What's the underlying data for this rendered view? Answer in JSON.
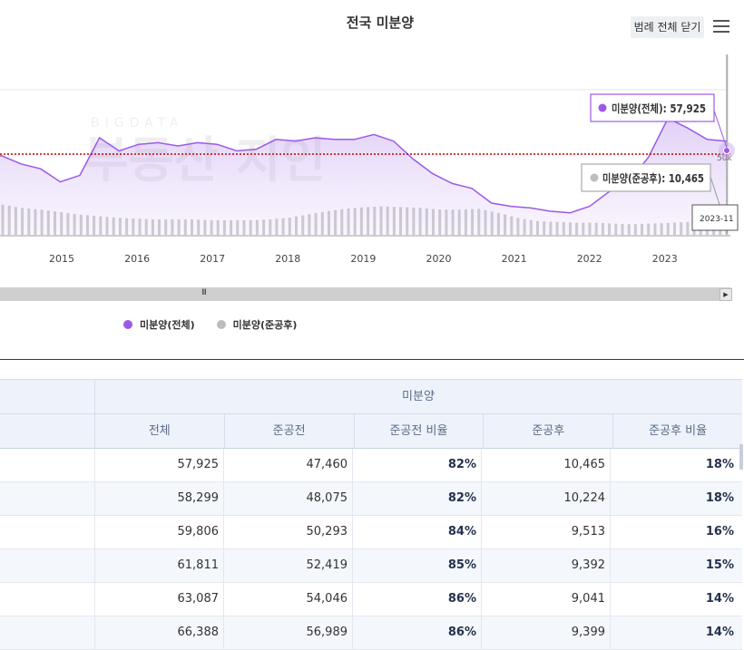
{
  "title": "전국 미분양",
  "legend_toggle_label": "범례 전체 닫기",
  "menu_icon": "hamburger-menu-icon",
  "colors": {
    "total": "#9b59e8",
    "completed": "#bdbdbd",
    "refline": "#c00000",
    "accent_table": "#283a5a"
  },
  "chart_data": {
    "type": "area",
    "x_tick_labels": [
      "2015",
      "2016",
      "2017",
      "2018",
      "2019",
      "2020",
      "2021",
      "2022",
      "2023"
    ],
    "reference_line_label": "50k",
    "reference_line_value": 50000,
    "series": [
      {
        "name": "미분양(전체)",
        "type": "area",
        "x": [
          "2014-06",
          "2014-09",
          "2014-12",
          "2015-03",
          "2015-06",
          "2015-09",
          "2015-12",
          "2016-03",
          "2016-06",
          "2016-09",
          "2016-12",
          "2017-03",
          "2017-06",
          "2017-09",
          "2017-12",
          "2018-03",
          "2018-06",
          "2018-09",
          "2018-12",
          "2019-03",
          "2019-06",
          "2019-09",
          "2019-12",
          "2020-03",
          "2020-06",
          "2020-09",
          "2020-12",
          "2021-03",
          "2021-06",
          "2021-09",
          "2021-12",
          "2022-03",
          "2022-06",
          "2022-09",
          "2022-12",
          "2023-03",
          "2023-06",
          "2023-09",
          "2023-11"
        ],
        "values": [
          48000,
          49000,
          44000,
          41000,
          33000,
          37000,
          60000,
          52000,
          56000,
          57000,
          55000,
          57000,
          56000,
          52000,
          53000,
          59000,
          58000,
          60000,
          59000,
          59000,
          62000,
          58000,
          47000,
          38000,
          32000,
          29000,
          20000,
          18000,
          17000,
          15000,
          14000,
          18000,
          27000,
          33000,
          48000,
          72000,
          66000,
          59000,
          57925
        ]
      },
      {
        "name": "미분양(준공후)",
        "type": "bar",
        "x_range": [
          "2014-06",
          "2023-11"
        ],
        "values": [
          19000,
          17000,
          16000,
          14500,
          13000,
          12000,
          11000,
          10500,
          10000,
          10000,
          10000,
          9500,
          9500,
          9500,
          10000,
          11000,
          13000,
          15000,
          16500,
          17500,
          18000,
          17500,
          17000,
          16000,
          16000,
          16500,
          14000,
          11000,
          9000,
          8500,
          8000,
          8000,
          7500,
          7000,
          7500,
          7800,
          8500,
          9500,
          10465
        ]
      }
    ],
    "tooltips": [
      {
        "label": "미분양(전체): 57,925"
      },
      {
        "label": "미분양(준공후): 10,465"
      }
    ],
    "crosshair_label": "2023-11"
  },
  "legend": [
    {
      "label": "미분양(전체)",
      "color": "#9b59e8"
    },
    {
      "label": "미분양(준공후)",
      "color": "#bdbdbd"
    }
  ],
  "table": {
    "group_header": "미분양",
    "columns": [
      "전체",
      "준공전",
      "준공전 비율",
      "준공후",
      "준공후 비율"
    ],
    "rows": [
      [
        "57,925",
        "47,460",
        "82%",
        "10,465",
        "18%"
      ],
      [
        "58,299",
        "48,075",
        "82%",
        "10,224",
        "18%"
      ],
      [
        "59,806",
        "50,293",
        "84%",
        "9,513",
        "16%"
      ],
      [
        "61,811",
        "52,419",
        "85%",
        "9,392",
        "15%"
      ],
      [
        "63,087",
        "54,046",
        "86%",
        "9,041",
        "14%"
      ],
      [
        "66,388",
        "56,989",
        "86%",
        "9,399",
        "14%"
      ]
    ]
  }
}
